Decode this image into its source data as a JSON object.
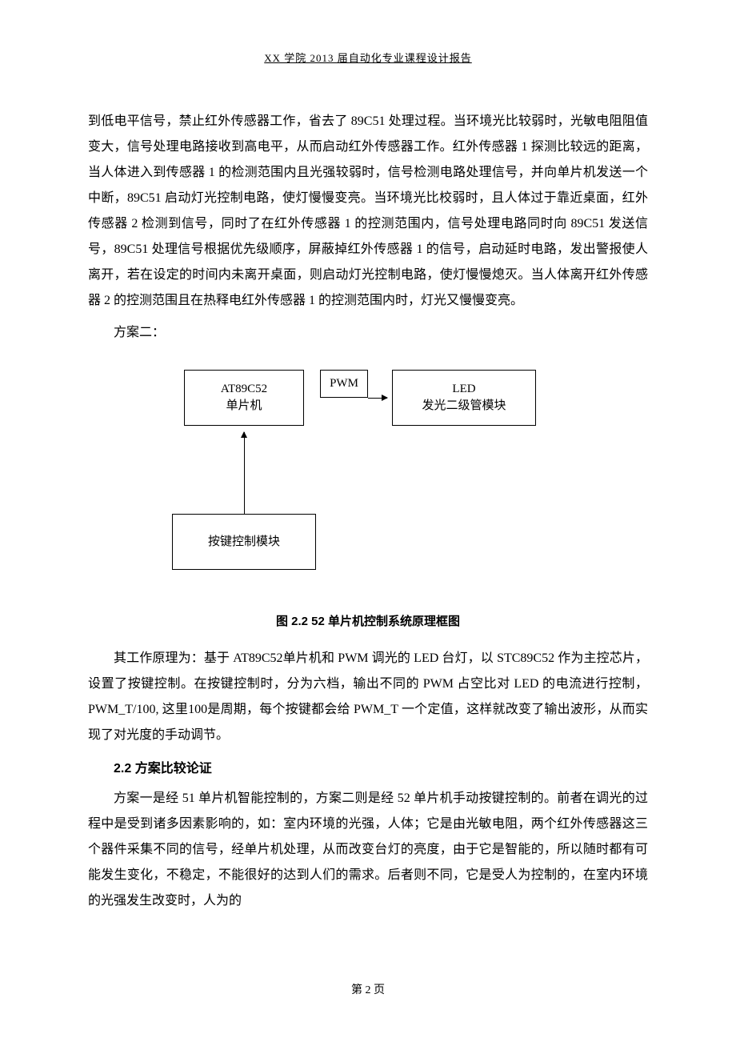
{
  "header": {
    "text": "XX 学院 2013 届自动化专业课程设计报告"
  },
  "paragraphs": {
    "p1": "到低电平信号，禁止红外传感器工作，省去了 89C51 处理过程。当环境光比较弱时，光敏电阻阻值变大，信号处理电路接收到高电平，从而启动红外传感器工作。红外传感器 1 探测比较远的距离，当人体进入到传感器 1 的检测范围内且光强较弱时，信号检测电路处理信号，并向单片机发送一个中断，89C51 启动灯光控制电路，使灯慢慢变亮。当环境光比校弱时，且人体过于靠近桌面，红外传感器 2 检测到信号，同时了在红外传感器 1 的控测范围内，信号处理电路同时向 89C51 发送信号，89C51 处理信号根据优先级顺序，屏蔽掉红外传感器 1 的信号，启动延时电路，发出警报使人离开，若在设定的时间内未离开桌面，则启动灯光控制电路，使灯慢慢熄灭。当人体离开红外传感器 2 的控测范围且在热释电红外传感器 1 的控测范围内时，灯光又慢慢变亮。",
    "p2": "方案二：",
    "p3": "其工作原理为：基于 AT89C52单片机和 PWM 调光的 LED 台灯，以 STC89C52 作为主控芯片，设置了按键控制。在按键控制时，分为六档，输出不同的 PWM 占空比对 LED 的电流进行控制，PWM_T/100, 这里100是周期，每个按键都会给 PWM_T 一个定值，这样就改变了输出波形，从而实现了对光度的手动调节。",
    "section": "2.2 方案比较论证",
    "p4": "方案一是经 51 单片机智能控制的，方案二则是经 52 单片机手动按键控制的。前者在调光的过程中是受到诸多因素影响的，如：室内环境的光强，人体；它是由光敏电阻，两个红外传感器这三个器件采集不同的信号，经单片机处理，从而改变台灯的亮度，由于它是智能的，所以随时都有可能发生变化，不稳定，不能很好的达到人们的需求。后者则不同，它是受人为控制的，在室内环境的光强发生改变时，人为的"
  },
  "diagram": {
    "type": "flowchart",
    "caption": "图 2.2  52 单片机控制系统原理框图",
    "nodes": {
      "mcu_line1": "AT89C52",
      "mcu_line2": "单片机",
      "pwm": "PWM",
      "led_line1": "LED",
      "led_line2": "发光二级管模块",
      "key": "按键控制模块"
    },
    "box_border_color": "#000000",
    "background_color": "#ffffff",
    "font_size": 15
  },
  "footer": {
    "text": "第 2 页"
  },
  "colors": {
    "text": "#000000",
    "background": "#ffffff"
  }
}
